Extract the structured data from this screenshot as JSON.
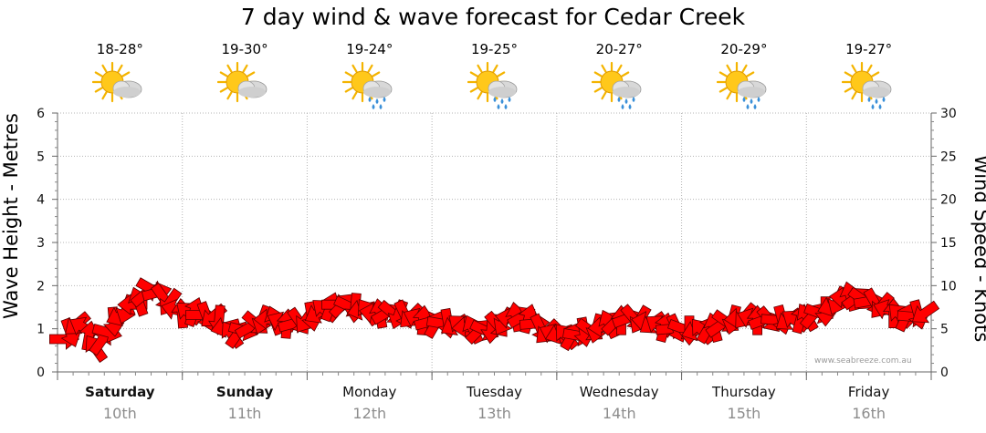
{
  "title": "7 day wind & wave forecast for Cedar Creek",
  "watermark": "www.seabreeze.com.au",
  "days": [
    {
      "name": "Saturday",
      "date": "10th",
      "temp": "18-28°",
      "icon": "sun-cloud-icon",
      "bold": true
    },
    {
      "name": "Sunday",
      "date": "11th",
      "temp": "19-30°",
      "icon": "sun-cloud-icon",
      "bold": true
    },
    {
      "name": "Monday",
      "date": "12th",
      "temp": "19-24°",
      "icon": "sun-cloud-rain-icon",
      "bold": false
    },
    {
      "name": "Tuesday",
      "date": "13th",
      "temp": "19-25°",
      "icon": "sun-cloud-rain-icon",
      "bold": false
    },
    {
      "name": "Wednesday",
      "date": "14th",
      "temp": "20-27°",
      "icon": "sun-cloud-rain-icon",
      "bold": false
    },
    {
      "name": "Thursday",
      "date": "15th",
      "temp": "20-29°",
      "icon": "sun-cloud-rain-icon",
      "bold": false
    },
    {
      "name": "Friday",
      "date": "16th",
      "temp": "19-27°",
      "icon": "sun-cloud-rain-icon",
      "bold": false
    }
  ],
  "chart_data": {
    "type": "line",
    "title": "7 day wind & wave forecast for Cedar Creek",
    "ylabel_left": "Wave Height - Metres",
    "ylabel_right": "Wind Speed - Knots",
    "ylim_left": [
      0,
      6
    ],
    "ylim_right": [
      0,
      30
    ],
    "yticks_left": [
      "0",
      "1",
      "2",
      "3",
      "4",
      "5",
      "6"
    ],
    "yticks_right": [
      "0",
      "5",
      "10",
      "15",
      "20",
      "25",
      "30"
    ],
    "grid": true,
    "series": [
      {
        "name": "Wind Speed",
        "axis": "right",
        "color": "#ff0000",
        "marker": "wind-direction-arrow",
        "x": [
          "Sat",
          "",
          "",
          "",
          "",
          "",
          "",
          "",
          "",
          "",
          "",
          "",
          "",
          "",
          "",
          "",
          "",
          "",
          "",
          "",
          "Sun",
          "",
          "",
          "",
          "",
          "",
          "",
          "",
          "",
          "",
          "",
          "",
          "",
          "",
          "",
          "",
          "",
          "",
          "",
          "",
          "Mon",
          "",
          "",
          "",
          "",
          "",
          "",
          "",
          "",
          "",
          "",
          "",
          "",
          "",
          "",
          "",
          "",
          "",
          "",
          "",
          "Tue",
          "",
          "",
          "",
          "",
          "",
          "",
          "",
          "",
          "",
          "",
          "",
          "",
          "",
          "",
          "",
          "",
          "",
          "",
          "",
          "Wed",
          "",
          "",
          "",
          "",
          "",
          "",
          "",
          "",
          "",
          "",
          "",
          "",
          "",
          "",
          "",
          "",
          "",
          "",
          "",
          "Thu",
          "",
          "",
          "",
          "",
          "",
          "",
          "",
          "",
          "",
          "",
          "",
          "",
          "",
          "",
          "",
          "",
          "",
          "",
          "",
          "Fri",
          "",
          "",
          "",
          "",
          "",
          "",
          "",
          "",
          "",
          "",
          "",
          "",
          "",
          "",
          "",
          "",
          "",
          "",
          ""
        ],
        "values": [
          3.8,
          4.5,
          5.5,
          5.2,
          4.2,
          2.8,
          3.6,
          4.6,
          5.8,
          6.5,
          7.2,
          7.8,
          8.2,
          9.0,
          9.6,
          9.2,
          8.6,
          8.0,
          7.2,
          6.8,
          6.9,
          7.0,
          6.6,
          6.4,
          6.4,
          6.0,
          5.2,
          4.4,
          4.4,
          4.8,
          5.2,
          5.6,
          6.0,
          6.1,
          6.0,
          5.8,
          5.6,
          5.6,
          5.8,
          6.0,
          6.4,
          6.8,
          7.2,
          7.6,
          7.8,
          7.8,
          7.6,
          7.4,
          7.2,
          7.0,
          6.8,
          6.8,
          6.8,
          6.8,
          6.6,
          6.6,
          6.4,
          6.2,
          6.0,
          5.8,
          5.6,
          5.6,
          5.6,
          5.4,
          5.4,
          5.2,
          5.0,
          4.8,
          4.8,
          5.0,
          5.4,
          5.8,
          6.2,
          6.4,
          6.4,
          6.2,
          5.6,
          5.0,
          4.6,
          4.4,
          4.4,
          4.2,
          4.2,
          4.2,
          4.6,
          4.8,
          5.0,
          5.2,
          5.6,
          5.8,
          6.0,
          6.2,
          6.2,
          6.0,
          5.8,
          5.6,
          5.4,
          5.2,
          5.0,
          5.0,
          5.0,
          4.8,
          4.8,
          4.8,
          5.0,
          5.2,
          5.4,
          5.8,
          6.0,
          6.2,
          6.4,
          6.2,
          6.0,
          6.0,
          6.0,
          6.0,
          6.0,
          6.0,
          6.0,
          6.2,
          6.4,
          6.6,
          6.8,
          7.0,
          7.6,
          8.2,
          8.6,
          8.8,
          8.6,
          8.4,
          8.2,
          8.0,
          7.6,
          7.2,
          6.8,
          6.6,
          6.4,
          6.4,
          6.6,
          6.8
        ]
      }
    ],
    "categories": [
      "Saturday 10th",
      "Sunday 11th",
      "Monday 12th",
      "Tuesday 13th",
      "Wednesday 14th",
      "Thursday 15th",
      "Friday 16th"
    ]
  }
}
